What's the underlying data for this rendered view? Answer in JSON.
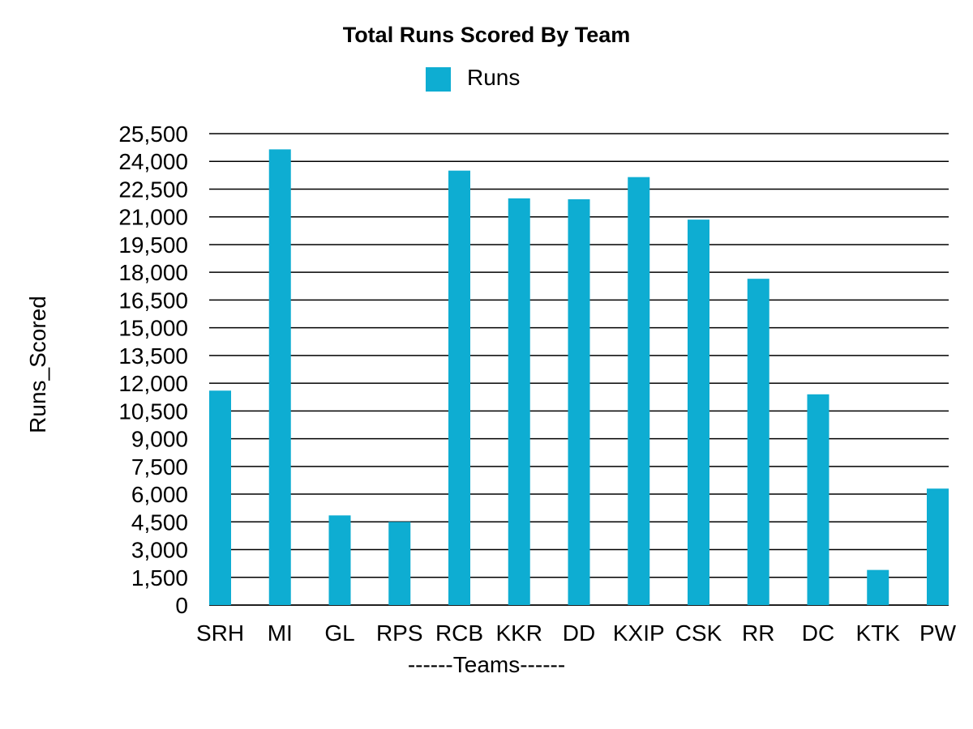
{
  "chart_data": {
    "type": "bar",
    "title": "Total Runs Scored By Team",
    "xlabel": "------Teams------",
    "ylabel": "Runs_Scored",
    "categories": [
      "SRH",
      "MI",
      "GL",
      "RPS",
      "RCB",
      "KKR",
      "DD",
      "KXIP",
      "CSK",
      "RR",
      "DC",
      "KTK",
      "PW"
    ],
    "series": [
      {
        "name": "Runs",
        "color": "#0EADD2",
        "values": [
          11600,
          24650,
          4850,
          4500,
          23500,
          22000,
          21950,
          23150,
          20850,
          17650,
          11400,
          1900,
          6300
        ]
      }
    ],
    "ylim": [
      0,
      25500
    ],
    "yticks": [
      0,
      1500,
      3000,
      4500,
      6000,
      7500,
      9000,
      10500,
      12000,
      13500,
      15000,
      16500,
      18000,
      19500,
      21000,
      22500,
      24000,
      25500
    ],
    "ytick_labels": [
      "0",
      "1,500",
      "3,000",
      "4,500",
      "6,000",
      "7,500",
      "9,000",
      "10,500",
      "12,000",
      "13,500",
      "15,000",
      "16,500",
      "18,000",
      "19,500",
      "21,000",
      "22,500",
      "24,000",
      "25,500"
    ],
    "grid": true,
    "legend_position": "top-center"
  }
}
